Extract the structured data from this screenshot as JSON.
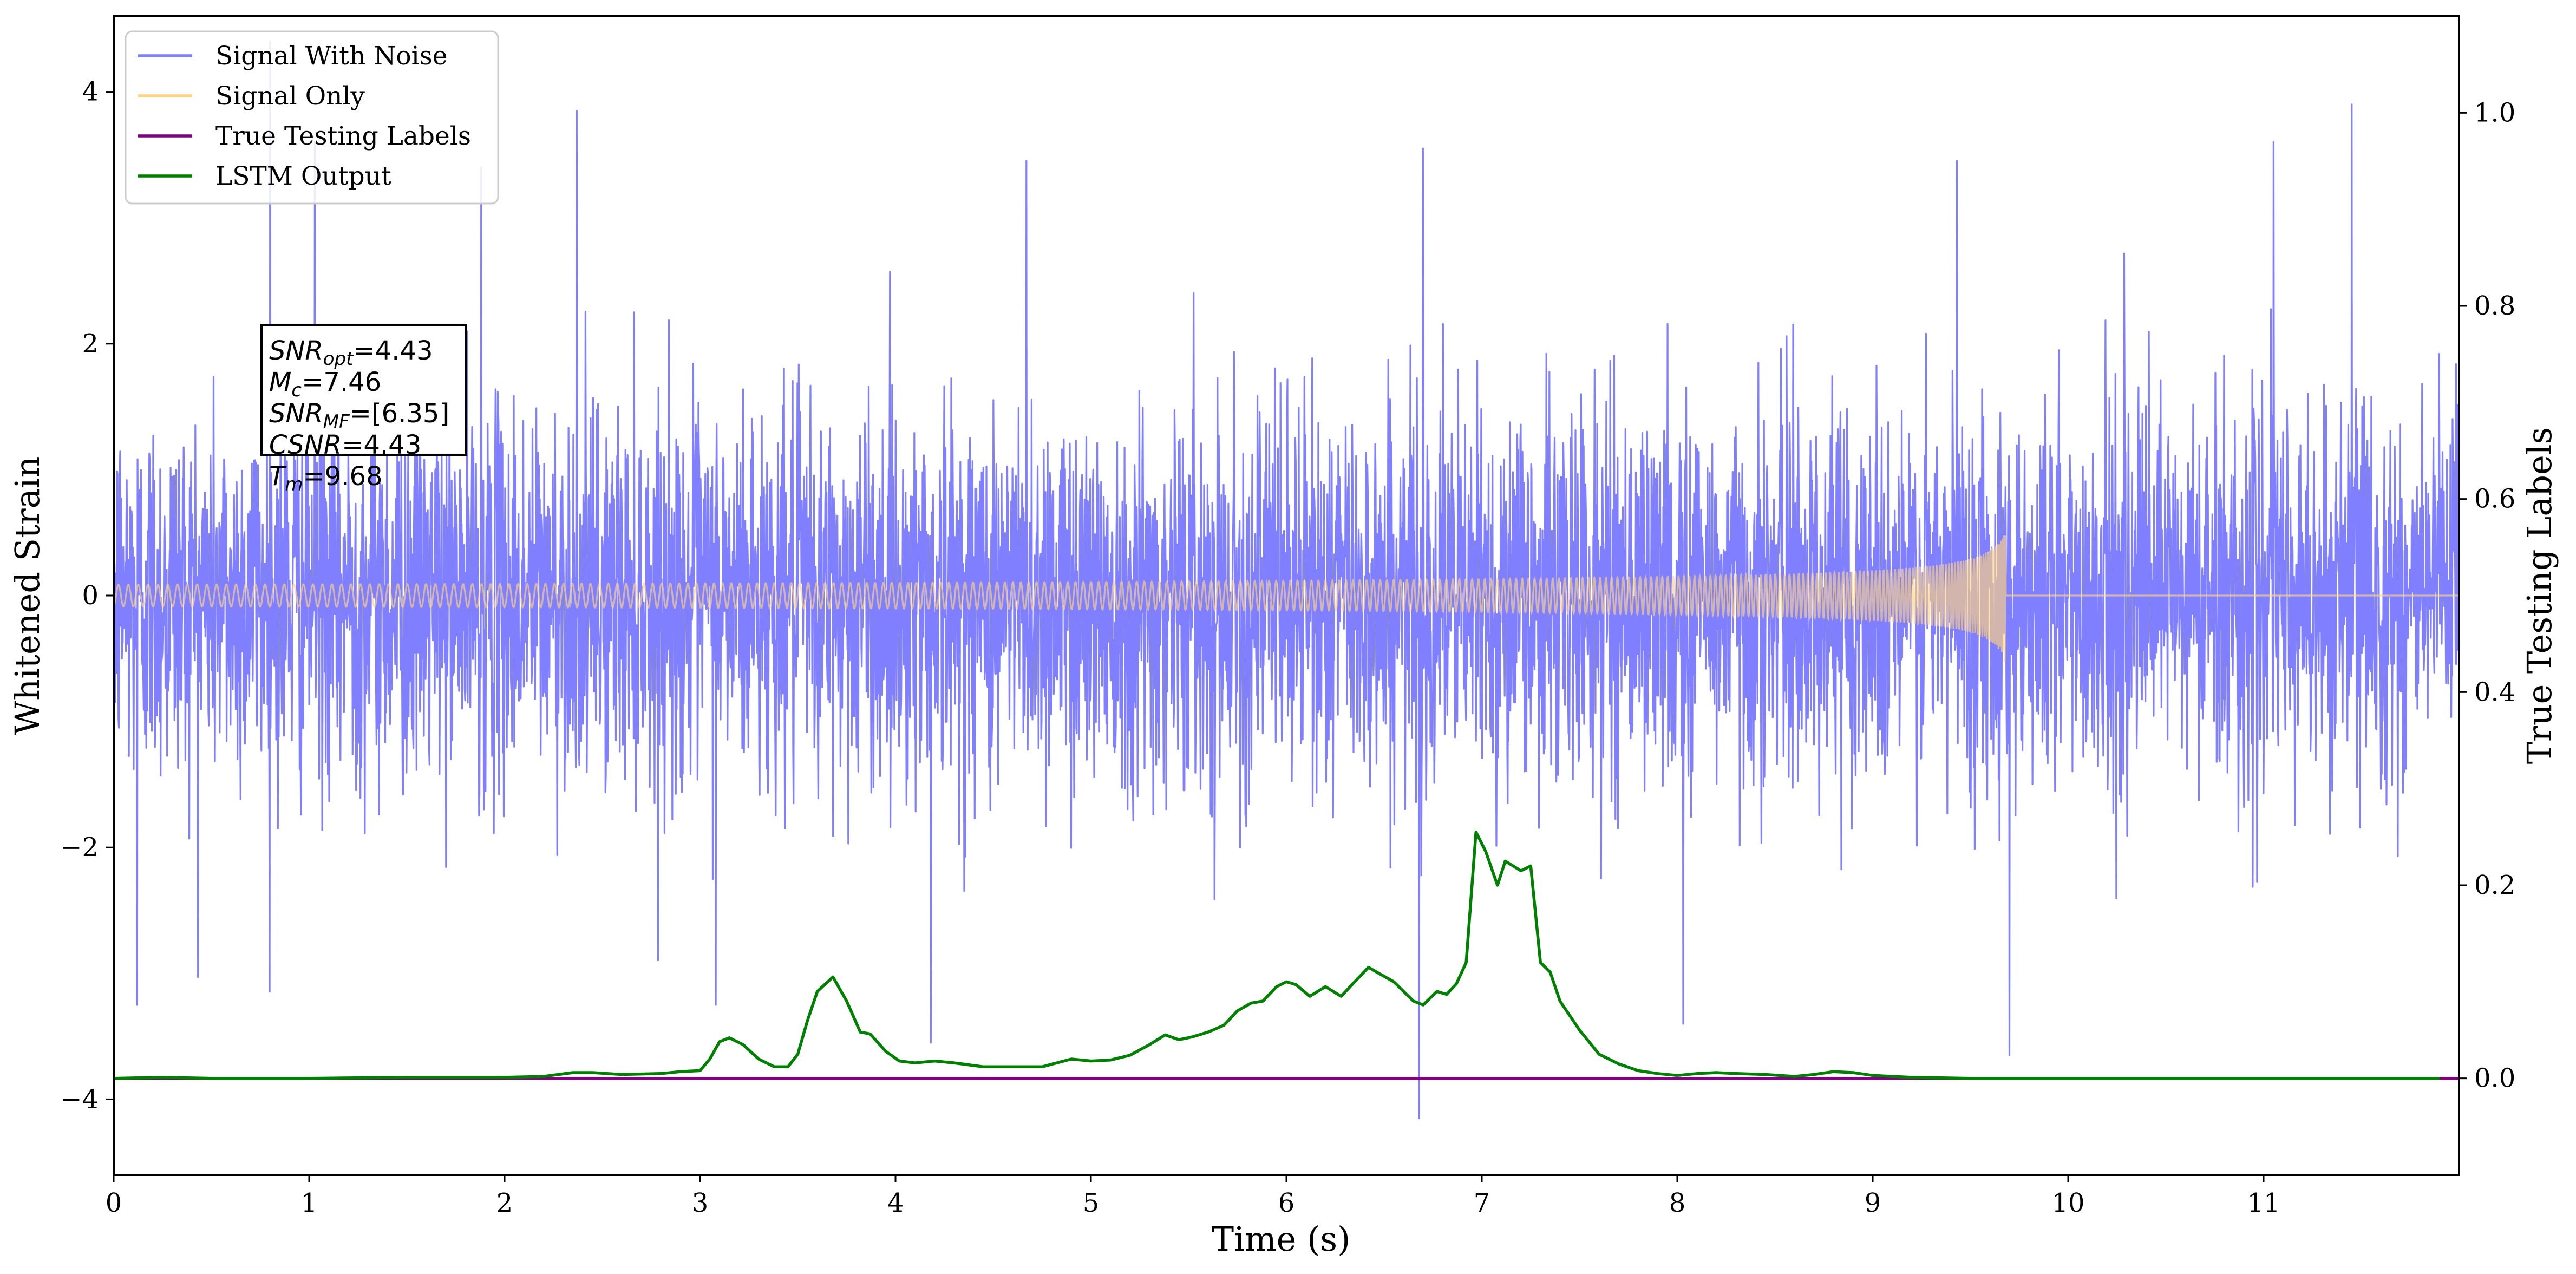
{
  "chart_data": {
    "type": "line",
    "xlabel": "Time (s)",
    "ylabel_left": "Whitened Strain",
    "ylabel_right": "True Testing Labels",
    "xlim": [
      0,
      12
    ],
    "ylim_left": [
      -4.6,
      4.6
    ],
    "ylim_right": [
      -0.1,
      1.1
    ],
    "x_ticks": [
      0,
      1,
      2,
      3,
      4,
      5,
      6,
      7,
      8,
      9,
      10,
      11
    ],
    "x_tick_labels": [
      "0",
      "1",
      "2",
      "3",
      "4",
      "5",
      "6",
      "7",
      "8",
      "9",
      "10",
      "11"
    ],
    "y_left_ticks": [
      -4,
      -2,
      0,
      2,
      4
    ],
    "y_left_tick_labels": [
      "−4",
      "−2",
      "0",
      "2",
      "4"
    ],
    "y_right_ticks": [
      0.0,
      0.2,
      0.4,
      0.6,
      0.8,
      1.0
    ],
    "y_right_tick_labels": [
      "0.0",
      "0.2",
      "0.4",
      "0.6",
      "0.8",
      "1.0"
    ],
    "legend": {
      "placement": "top-left",
      "entries": [
        {
          "label": "Signal With Noise",
          "color": "#7f7fff"
        },
        {
          "label": "Signal Only",
          "color": "#ffd27f"
        },
        {
          "label": "True Testing Labels",
          "color": "#800080"
        },
        {
          "label": "LSTM Output",
          "color": "#008000"
        }
      ]
    },
    "annotation": {
      "placement": "upper-left",
      "lines": [
        {
          "base": "SNR",
          "sub": "opt",
          "value": "=4.43"
        },
        {
          "base": "M",
          "sub": "c",
          "value": "=7.46"
        },
        {
          "base": "SNR",
          "sub": "MF",
          "value": "=[6.35]"
        },
        {
          "base": "CSNR",
          "sub": "",
          "value": "=4.43"
        },
        {
          "base": "T",
          "sub": "m",
          "value": "=9.68"
        }
      ]
    },
    "series": [
      {
        "name": "Signal With Noise",
        "axis": "left",
        "color": "#7f7fff",
        "kind": "noise",
        "std": 0.75,
        "x_range": [
          0,
          12
        ],
        "spikes": [
          {
            "x": 0.8,
            "y": 4.4
          },
          {
            "x": 1.03,
            "y": 3.6
          },
          {
            "x": 1.88,
            "y": 3.4
          },
          {
            "x": 2.37,
            "y": 3.85
          },
          {
            "x": 4.67,
            "y": 3.45
          },
          {
            "x": 6.7,
            "y": 3.55
          },
          {
            "x": 9.43,
            "y": 3.45
          },
          {
            "x": 11.45,
            "y": 3.9
          },
          {
            "x": 11.05,
            "y": 3.6
          },
          {
            "x": 6.68,
            "y": -4.15
          },
          {
            "x": 9.7,
            "y": -3.65
          },
          {
            "x": 3.08,
            "y": -3.25
          },
          {
            "x": 4.18,
            "y": -3.55
          },
          {
            "x": 8.03,
            "y": -3.4
          },
          {
            "x": 0.12,
            "y": -3.25
          }
        ]
      },
      {
        "name": "Signal Only",
        "axis": "left",
        "color": "#ffd27f",
        "kind": "chirp",
        "x_range": [
          0,
          12
        ],
        "merger_time": 9.68,
        "peak_amplitude": 0.55
      },
      {
        "name": "True Testing Labels",
        "axis": "right",
        "color": "#800080",
        "x": [
          0,
          12
        ],
        "y": [
          0.0,
          0.0
        ]
      },
      {
        "name": "LSTM Output",
        "axis": "right",
        "color": "#008000",
        "x": [
          0,
          0.25,
          0.5,
          1.0,
          1.5,
          2.0,
          2.2,
          2.35,
          2.45,
          2.6,
          2.8,
          2.9,
          3.0,
          3.05,
          3.1,
          3.15,
          3.22,
          3.3,
          3.38,
          3.45,
          3.5,
          3.55,
          3.6,
          3.68,
          3.75,
          3.82,
          3.87,
          3.95,
          4.02,
          4.1,
          4.2,
          4.3,
          4.45,
          4.6,
          4.75,
          4.9,
          5.0,
          5.1,
          5.2,
          5.3,
          5.38,
          5.45,
          5.52,
          5.6,
          5.68,
          5.75,
          5.82,
          5.88,
          5.95,
          6.0,
          6.05,
          6.12,
          6.2,
          6.28,
          6.35,
          6.42,
          6.48,
          6.55,
          6.6,
          6.65,
          6.7,
          6.77,
          6.82,
          6.87,
          6.92,
          6.97,
          7.02,
          7.08,
          7.12,
          7.2,
          7.25,
          7.3,
          7.35,
          7.4,
          7.5,
          7.6,
          7.7,
          7.8,
          7.9,
          8.0,
          8.1,
          8.2,
          8.3,
          8.45,
          8.6,
          8.7,
          8.8,
          8.9,
          9.0,
          9.2,
          9.5,
          10.0,
          11.0,
          11.9
        ],
        "y": [
          0.0,
          0.001,
          0.0,
          0.0,
          0.001,
          0.001,
          0.002,
          0.006,
          0.006,
          0.004,
          0.005,
          0.007,
          0.008,
          0.02,
          0.038,
          0.042,
          0.035,
          0.02,
          0.012,
          0.012,
          0.025,
          0.06,
          0.09,
          0.105,
          0.08,
          0.048,
          0.046,
          0.028,
          0.018,
          0.016,
          0.018,
          0.016,
          0.012,
          0.012,
          0.012,
          0.02,
          0.018,
          0.019,
          0.024,
          0.035,
          0.045,
          0.04,
          0.043,
          0.048,
          0.055,
          0.07,
          0.078,
          0.08,
          0.095,
          0.1,
          0.097,
          0.085,
          0.095,
          0.085,
          0.1,
          0.115,
          0.108,
          0.1,
          0.09,
          0.08,
          0.076,
          0.09,
          0.087,
          0.098,
          0.12,
          0.255,
          0.235,
          0.2,
          0.225,
          0.215,
          0.22,
          0.12,
          0.11,
          0.08,
          0.05,
          0.025,
          0.015,
          0.008,
          0.005,
          0.003,
          0.005,
          0.006,
          0.005,
          0.004,
          0.002,
          0.004,
          0.007,
          0.006,
          0.003,
          0.001,
          0.0,
          0.0,
          0.0,
          0.0
        ]
      }
    ]
  }
}
